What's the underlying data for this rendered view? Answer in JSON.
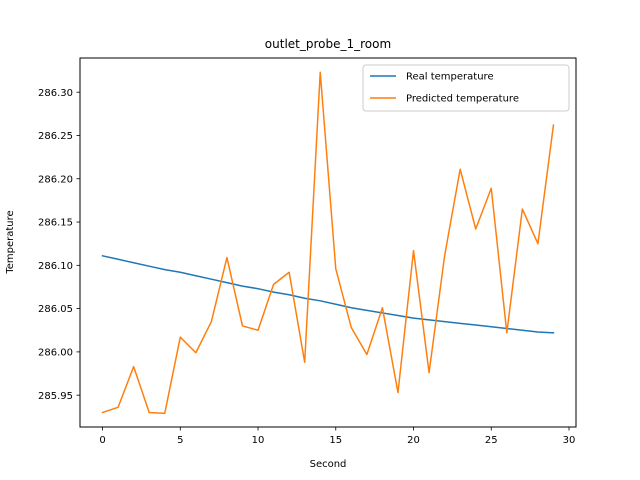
{
  "chart_data": {
    "type": "line",
    "title": "outlet_probe_1_room",
    "xlabel": "Second",
    "ylabel": "Temperature",
    "xlim": [
      -1.45,
      30.45
    ],
    "ylim": [
      285.91323,
      286.3395
    ],
    "xticks": [
      0,
      5,
      10,
      15,
      20,
      25,
      30
    ],
    "yticks": [
      285.95,
      286.0,
      286.05,
      286.1,
      286.15,
      286.2,
      286.25,
      286.3
    ],
    "legend_position": "top-right",
    "grid": false,
    "series": [
      {
        "name": "Real temperature",
        "color": "#1f77b4",
        "x": [
          0,
          1,
          2,
          3,
          4,
          5,
          6,
          7,
          8,
          9,
          10,
          11,
          12,
          13,
          14,
          15,
          16,
          17,
          18,
          19,
          20,
          21,
          22,
          23,
          24,
          25,
          26,
          27,
          28,
          29
        ],
        "y": [
          286.111,
          286.107,
          286.103,
          286.099,
          286.095,
          286.092,
          286.088,
          286.084,
          286.08,
          286.076,
          286.073,
          286.069,
          286.066,
          286.062,
          286.059,
          286.055,
          286.051,
          286.048,
          286.045,
          286.042,
          286.039,
          286.037,
          286.035,
          286.033,
          286.031,
          286.029,
          286.027,
          286.025,
          286.023,
          286.022
        ]
      },
      {
        "name": "Predicted temperature",
        "color": "#ff7f0e",
        "x": [
          0,
          1,
          2,
          3,
          4,
          5,
          6,
          7,
          8,
          9,
          10,
          11,
          12,
          13,
          14,
          15,
          16,
          17,
          18,
          19,
          20,
          21,
          22,
          23,
          24,
          25,
          26,
          27,
          28,
          29
        ],
        "y": [
          285.93,
          285.936,
          285.983,
          285.93,
          285.929,
          286.017,
          285.999,
          286.035,
          286.109,
          286.03,
          286.025,
          286.078,
          286.092,
          285.988,
          286.323,
          286.096,
          286.028,
          285.997,
          286.051,
          285.953,
          286.117,
          285.976,
          286.111,
          286.211,
          286.142,
          286.189,
          286.022,
          286.165,
          286.125,
          286.262
        ]
      }
    ]
  }
}
